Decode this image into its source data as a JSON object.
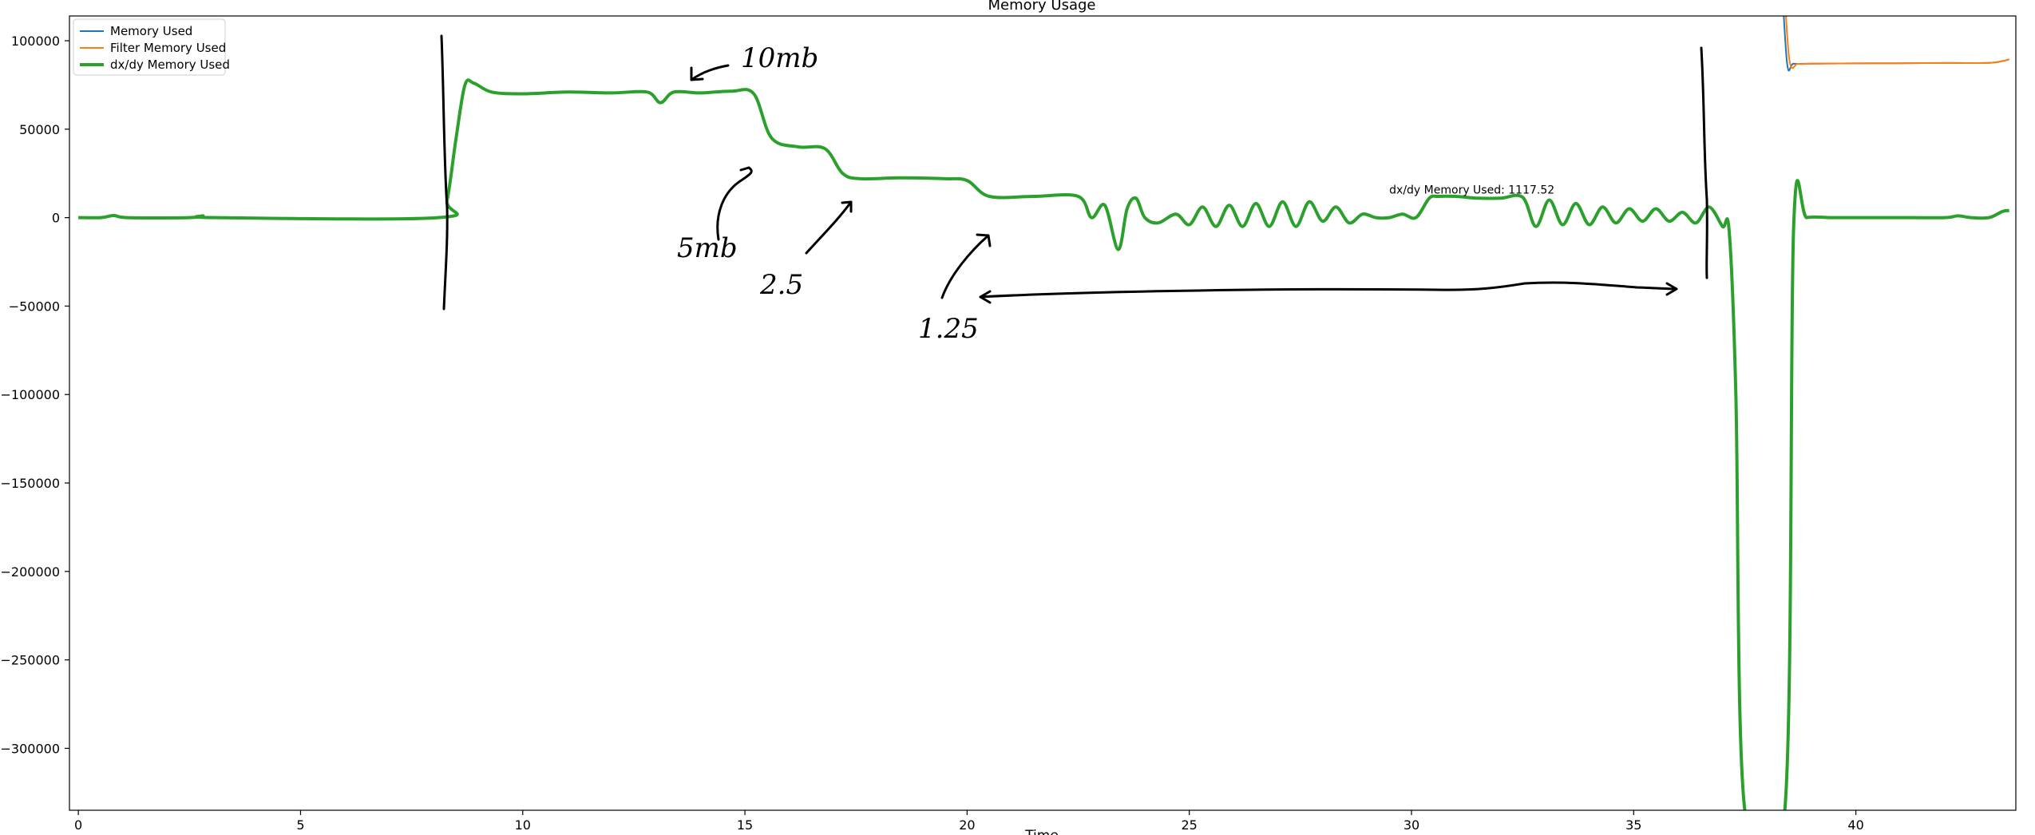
{
  "chart_data": {
    "type": "line",
    "title": "Memory Usage",
    "xlabel": "Time",
    "ylabel": "",
    "xlim": [
      -0.2,
      43.6
    ],
    "ylim": [
      -335000,
      114000
    ],
    "x_ticks": [
      0,
      5,
      10,
      15,
      20,
      25,
      30,
      35,
      40
    ],
    "y_ticks": [
      100000,
      50000,
      0,
      -50000,
      -100000,
      -150000,
      -200000,
      -250000,
      -300000
    ],
    "legend_position": "top-left",
    "grid": false,
    "series": [
      {
        "name": "Memory Used",
        "color": "#1f77b4",
        "x": [
          38.3,
          38.45,
          38.6,
          39,
          40,
          41,
          42,
          43,
          43.3,
          43.45
        ],
        "y": [
          150000,
          88000,
          87000,
          87000,
          87200,
          87300,
          87400,
          87500,
          88500,
          89500
        ]
      },
      {
        "name": "Filter Memory Used",
        "color": "#ff7f0e",
        "x": [
          38.35,
          38.5,
          38.7,
          39,
          40,
          41,
          42,
          43,
          43.3,
          43.45
        ],
        "y": [
          150000,
          90000,
          87000,
          87000,
          87200,
          87300,
          87400,
          87500,
          88500,
          89500
        ]
      },
      {
        "name": "dx/dy Memory Used",
        "color": "#2ca02c",
        "x": [
          0,
          0.5,
          0.8,
          1.1,
          2.5,
          2.8,
          3.1,
          8.1,
          8.3,
          8.5,
          8.7,
          8.9,
          9.3,
          10,
          11,
          12,
          12.8,
          13.1,
          13.4,
          14,
          14.7,
          15.2,
          15.6,
          16.2,
          16.8,
          17.2,
          17.6,
          18.5,
          19.5,
          20,
          20.5,
          21.5,
          22.5,
          22.8,
          23.1,
          23.4,
          23.6,
          23.8,
          24,
          24.3,
          24.7,
          25,
          25.3,
          25.6,
          25.9,
          26.2,
          26.5,
          26.8,
          27.1,
          27.4,
          27.7,
          28,
          28.3,
          28.6,
          28.9,
          29.2,
          29.5,
          29.8,
          30.1,
          30.4,
          30.6,
          31,
          31.5,
          32,
          32.5,
          32.8,
          33.1,
          33.4,
          33.7,
          34,
          34.3,
          34.6,
          34.9,
          35.2,
          35.5,
          35.8,
          36.1,
          36.4,
          36.7,
          37,
          37.15,
          37.3,
          37.5,
          38.4,
          38.6,
          38.9,
          39.5,
          40.5,
          41,
          42,
          42.3,
          42.6,
          43,
          43.3,
          43.45
        ],
        "y": [
          0,
          0,
          1200,
          0,
          0,
          1000,
          0,
          0,
          10000,
          45000,
          75000,
          76000,
          71000,
          70000,
          71000,
          70500,
          71000,
          65000,
          71000,
          70500,
          71500,
          70000,
          45000,
          40000,
          39000,
          25000,
          22000,
          22500,
          22000,
          21000,
          12000,
          12000,
          12000,
          0,
          7000,
          -18000,
          5000,
          11000,
          0,
          -3000,
          2000,
          -4000,
          6000,
          -5000,
          7000,
          -5000,
          8000,
          -5000,
          9000,
          -5000,
          9000,
          -2000,
          6000,
          -3000,
          2000,
          0,
          0,
          2000,
          0,
          11000,
          12000,
          12000,
          11000,
          11000,
          11500,
          -5000,
          10000,
          -4000,
          8000,
          -4000,
          6000,
          -3000,
          5000,
          -2000,
          5000,
          -2000,
          3000,
          -3000,
          6000,
          -5000,
          -8000,
          -100000,
          -335000,
          -335000,
          -5000,
          0,
          0,
          0,
          0,
          0,
          1000,
          0,
          0,
          3500,
          4000
        ]
      }
    ],
    "annotations": [
      {
        "text": "dx/dy Memory Used: 1117.52",
        "x": 29.5,
        "y": 13500
      }
    ]
  },
  "handwritten_notes": [
    "10mb",
    "5mb",
    "2.5",
    "1.25"
  ]
}
